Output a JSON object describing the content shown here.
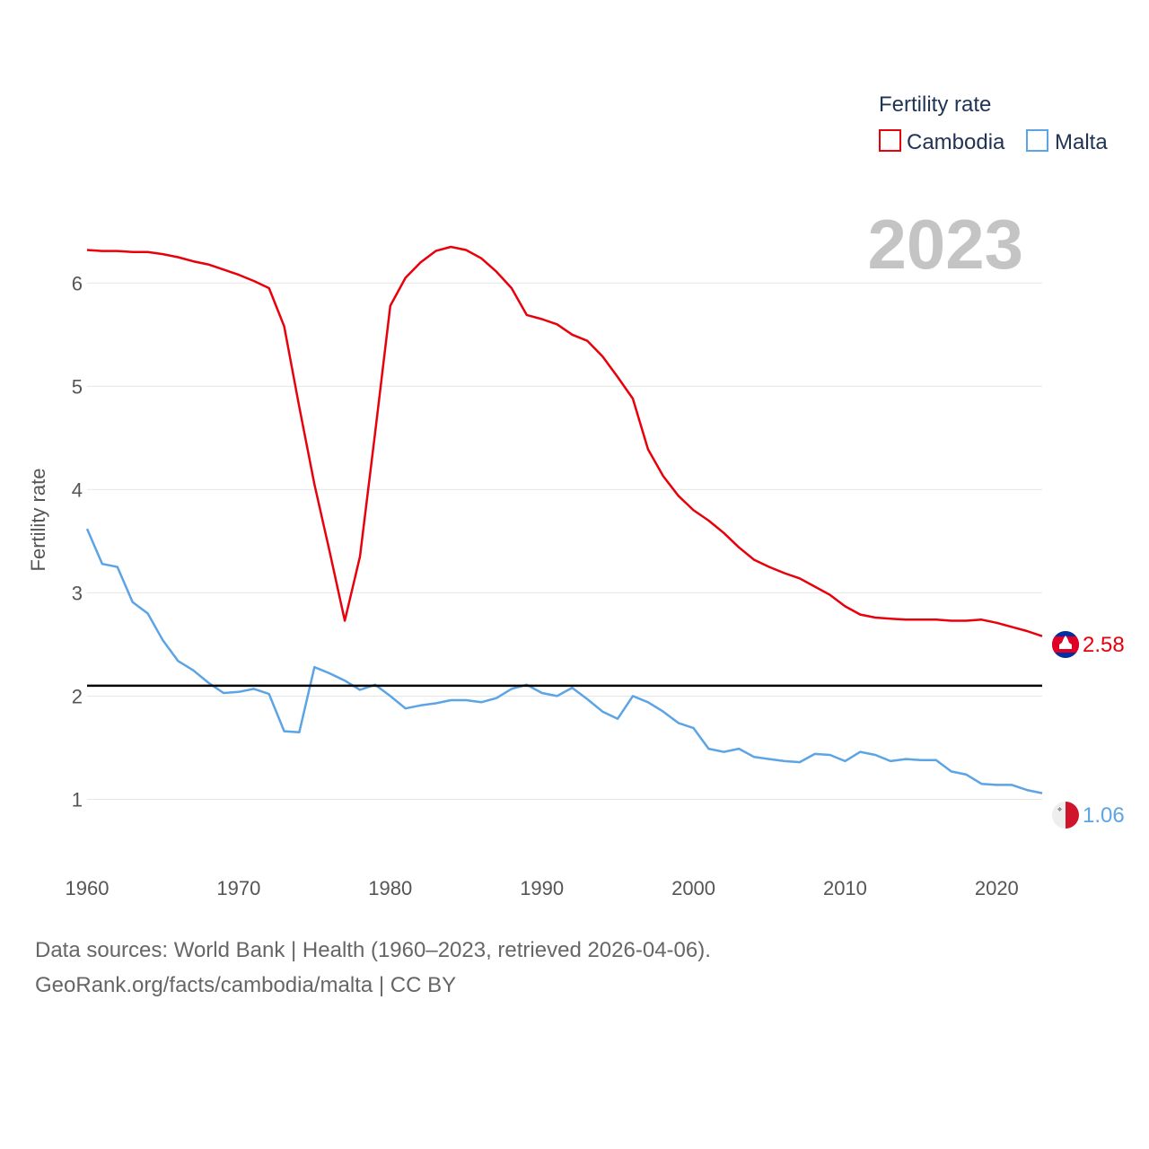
{
  "chart_data": {
    "type": "line",
    "ylabel": "Fertility rate",
    "ylim": [
      0.5,
      6.75
    ],
    "xlim": [
      1960,
      2023
    ],
    "yticks": [
      1,
      2,
      3,
      4,
      5,
      6
    ],
    "xticks": [
      1960,
      1970,
      1980,
      1990,
      2000,
      2010,
      2020
    ],
    "grid": true,
    "legend_position": "top-right",
    "legend_title": "Fertility rate",
    "year_label": "2023",
    "reference_line": 2.1,
    "x": [
      1960,
      1961,
      1962,
      1963,
      1964,
      1965,
      1966,
      1967,
      1968,
      1969,
      1970,
      1971,
      1972,
      1973,
      1974,
      1975,
      1976,
      1977,
      1978,
      1979,
      1980,
      1981,
      1982,
      1983,
      1984,
      1985,
      1986,
      1987,
      1988,
      1989,
      1990,
      1991,
      1992,
      1993,
      1994,
      1995,
      1996,
      1997,
      1998,
      1999,
      2000,
      2001,
      2002,
      2003,
      2004,
      2005,
      2006,
      2007,
      2008,
      2009,
      2010,
      2011,
      2012,
      2013,
      2014,
      2015,
      2016,
      2017,
      2018,
      2019,
      2020,
      2021,
      2022,
      2023
    ],
    "series": [
      {
        "name": "Cambodia",
        "color": "#e8000b",
        "end_label": "2.58",
        "values": [
          6.32,
          6.31,
          6.31,
          6.3,
          6.3,
          6.28,
          6.25,
          6.21,
          6.18,
          6.13,
          6.08,
          6.02,
          5.95,
          5.58,
          4.8,
          4.05,
          3.4,
          2.73,
          3.35,
          4.55,
          5.78,
          6.05,
          6.2,
          6.31,
          6.35,
          6.32,
          6.24,
          6.11,
          5.95,
          5.69,
          5.65,
          5.6,
          5.5,
          5.44,
          5.29,
          5.09,
          4.88,
          4.39,
          4.13,
          3.94,
          3.8,
          3.7,
          3.58,
          3.44,
          3.32,
          3.25,
          3.19,
          3.14,
          3.06,
          2.98,
          2.87,
          2.79,
          2.76,
          2.75,
          2.74,
          2.74,
          2.74,
          2.73,
          2.73,
          2.74,
          2.71,
          2.67,
          2.63,
          2.58
        ]
      },
      {
        "name": "Malta",
        "color": "#5ba4e5",
        "end_label": "1.06",
        "values": [
          3.62,
          3.28,
          3.25,
          2.91,
          2.8,
          2.54,
          2.34,
          2.25,
          2.13,
          2.03,
          2.04,
          2.07,
          2.02,
          1.66,
          1.65,
          2.28,
          2.22,
          2.15,
          2.06,
          2.11,
          2.0,
          1.88,
          1.91,
          1.93,
          1.96,
          1.96,
          1.94,
          1.98,
          2.07,
          2.11,
          2.03,
          2.0,
          2.08,
          1.97,
          1.85,
          1.78,
          2.0,
          1.94,
          1.85,
          1.74,
          1.69,
          1.49,
          1.46,
          1.49,
          1.41,
          1.39,
          1.37,
          1.36,
          1.44,
          1.43,
          1.37,
          1.46,
          1.43,
          1.37,
          1.39,
          1.38,
          1.38,
          1.27,
          1.24,
          1.15,
          1.14,
          1.14,
          1.09,
          1.06
        ]
      }
    ]
  },
  "footer": {
    "sources": "Data sources: World Bank | Health (1960–2023, retrieved 2026-04-06).",
    "credit": "GeoRank.org/facts/cambodia/malta | CC BY"
  }
}
